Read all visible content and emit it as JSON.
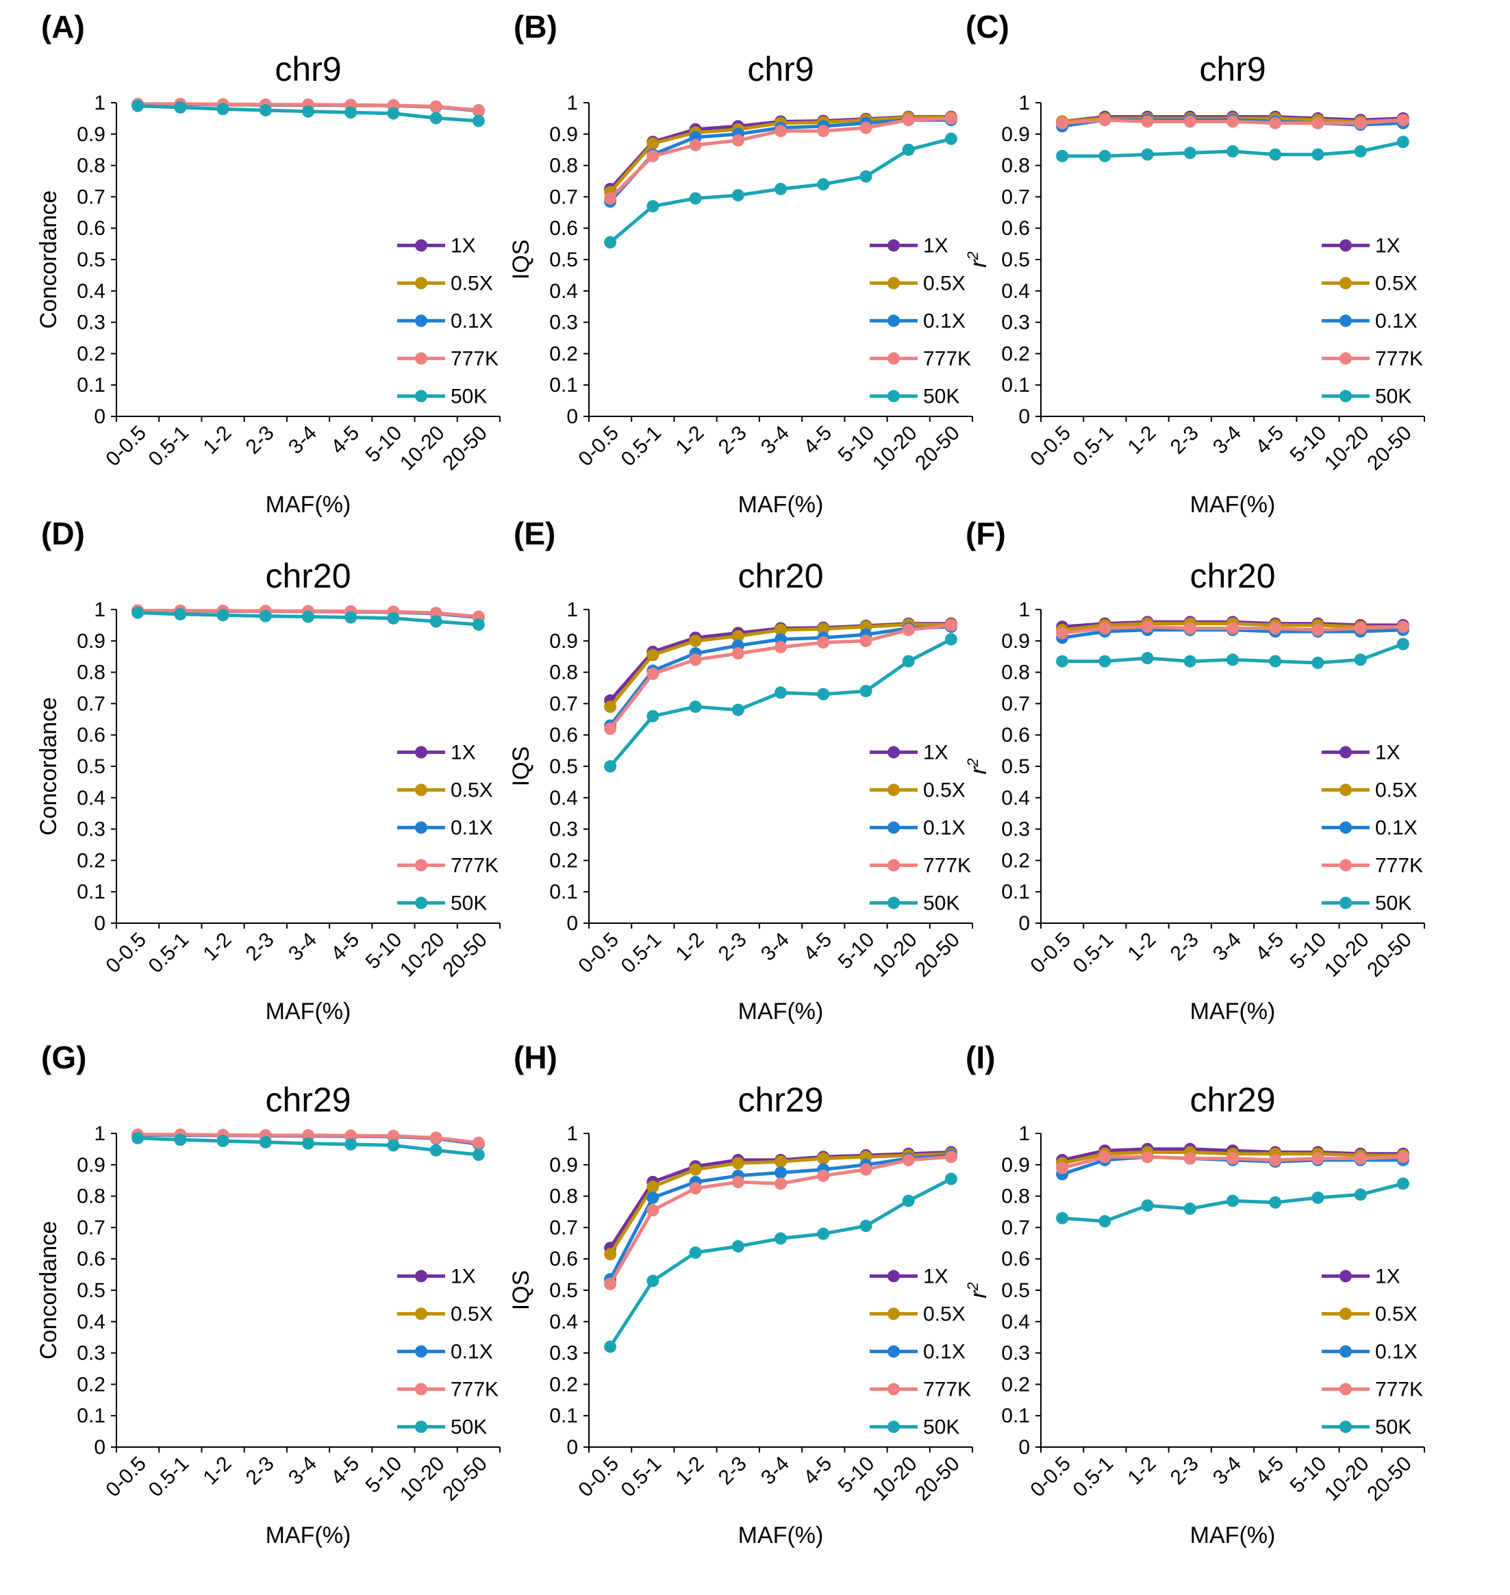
{
  "colors": {
    "1X": "#7030a0",
    "0.5X": "#bf9000",
    "0.1X": "#1f7fd4",
    "777K": "#f08080",
    "50K": "#1aa5b5",
    "axis": "#000000"
  },
  "chart_data": [
    {
      "panel": "(A)",
      "type": "line",
      "title": "chr9",
      "xlabel": "MAF(%)",
      "ylabel": "Concordance",
      "ylabel_style": "normal",
      "ylim": [
        0,
        1
      ],
      "yticks": [
        "0",
        "0.1",
        "0.2",
        "0.3",
        "0.4",
        "0.5",
        "0.6",
        "0.7",
        "0.8",
        "0.9",
        "1"
      ],
      "categories": [
        "0-0.5",
        "0.5-1",
        "1-2",
        "2-3",
        "3-4",
        "4-5",
        "5-10",
        "10-20",
        "20-50"
      ],
      "legend_position": "right-middle",
      "grid": false,
      "series": [
        {
          "name": "1X",
          "values": [
            0.995,
            0.995,
            0.994,
            0.993,
            0.993,
            0.992,
            0.991,
            0.987,
            0.975
          ]
        },
        {
          "name": "0.5X",
          "values": [
            0.995,
            0.995,
            0.994,
            0.993,
            0.993,
            0.992,
            0.991,
            0.987,
            0.975
          ]
        },
        {
          "name": "0.1X",
          "values": [
            0.995,
            0.995,
            0.994,
            0.993,
            0.993,
            0.992,
            0.991,
            0.987,
            0.974
          ]
        },
        {
          "name": "777K",
          "values": [
            0.996,
            0.996,
            0.995,
            0.994,
            0.994,
            0.993,
            0.992,
            0.988,
            0.976
          ]
        },
        {
          "name": "50K",
          "values": [
            0.99,
            0.985,
            0.98,
            0.976,
            0.972,
            0.969,
            0.966,
            0.951,
            0.942
          ]
        }
      ]
    },
    {
      "panel": "(B)",
      "type": "line",
      "title": "chr9",
      "xlabel": "MAF(%)",
      "ylabel": "IQS",
      "ylabel_style": "normal",
      "ylim": [
        0,
        1
      ],
      "yticks": [
        "0",
        "0.1",
        "0.2",
        "0.3",
        "0.4",
        "0.5",
        "0.6",
        "0.7",
        "0.8",
        "0.9",
        "1"
      ],
      "categories": [
        "0-0.5",
        "0.5-1",
        "1-2",
        "2-3",
        "3-4",
        "4-5",
        "5-10",
        "10-20",
        "20-50"
      ],
      "legend_position": "right-middle",
      "grid": false,
      "series": [
        {
          "name": "1X",
          "values": [
            0.725,
            0.875,
            0.915,
            0.925,
            0.94,
            0.942,
            0.948,
            0.955,
            0.955
          ]
        },
        {
          "name": "0.5X",
          "values": [
            0.715,
            0.87,
            0.905,
            0.915,
            0.935,
            0.938,
            0.945,
            0.953,
            0.953
          ]
        },
        {
          "name": "0.1X",
          "values": [
            0.685,
            0.835,
            0.89,
            0.9,
            0.92,
            0.925,
            0.935,
            0.945,
            0.945
          ]
        },
        {
          "name": "777K",
          "values": [
            0.695,
            0.83,
            0.865,
            0.88,
            0.91,
            0.91,
            0.92,
            0.945,
            0.95
          ]
        },
        {
          "name": "50K",
          "values": [
            0.555,
            0.67,
            0.695,
            0.705,
            0.725,
            0.74,
            0.765,
            0.85,
            0.885
          ]
        }
      ]
    },
    {
      "panel": "(C)",
      "type": "line",
      "title": "chr9",
      "xlabel": "MAF(%)",
      "ylabel": "r2",
      "ylabel_style": "italic-superscript",
      "ylim": [
        0,
        1
      ],
      "yticks": [
        "0",
        "0.1",
        "0.2",
        "0.3",
        "0.4",
        "0.5",
        "0.6",
        "0.7",
        "0.8",
        "0.9",
        "1"
      ],
      "categories": [
        "0-0.5",
        "0.5-1",
        "1-2",
        "2-3",
        "3-4",
        "4-5",
        "5-10",
        "10-20",
        "20-50"
      ],
      "legend_position": "right-middle",
      "grid": false,
      "series": [
        {
          "name": "1X",
          "values": [
            0.94,
            0.955,
            0.955,
            0.955,
            0.955,
            0.955,
            0.95,
            0.945,
            0.95
          ]
        },
        {
          "name": "0.5X",
          "values": [
            0.94,
            0.95,
            0.95,
            0.95,
            0.95,
            0.95,
            0.945,
            0.94,
            0.945
          ]
        },
        {
          "name": "0.1X",
          "values": [
            0.925,
            0.945,
            0.945,
            0.945,
            0.945,
            0.94,
            0.935,
            0.93,
            0.935
          ]
        },
        {
          "name": "777K",
          "values": [
            0.935,
            0.945,
            0.94,
            0.94,
            0.94,
            0.935,
            0.935,
            0.935,
            0.945
          ]
        },
        {
          "name": "50K",
          "values": [
            0.83,
            0.83,
            0.835,
            0.84,
            0.845,
            0.835,
            0.835,
            0.845,
            0.875
          ]
        }
      ]
    },
    {
      "panel": "(D)",
      "type": "line",
      "title": "chr20",
      "xlabel": "MAF(%)",
      "ylabel": "Concordance",
      "ylabel_style": "normal",
      "ylim": [
        0,
        1
      ],
      "yticks": [
        "0",
        "0.1",
        "0.2",
        "0.3",
        "0.4",
        "0.5",
        "0.6",
        "0.7",
        "0.8",
        "0.9",
        "1"
      ],
      "categories": [
        "0-0.5",
        "0.5-1",
        "1-2",
        "2-3",
        "3-4",
        "4-5",
        "5-10",
        "10-20",
        "20-50"
      ],
      "legend_position": "right-middle",
      "grid": false,
      "series": [
        {
          "name": "1X",
          "values": [
            0.996,
            0.996,
            0.995,
            0.995,
            0.994,
            0.993,
            0.992,
            0.988,
            0.976
          ]
        },
        {
          "name": "0.5X",
          "values": [
            0.996,
            0.996,
            0.995,
            0.995,
            0.994,
            0.993,
            0.992,
            0.988,
            0.976
          ]
        },
        {
          "name": "0.1X",
          "values": [
            0.996,
            0.995,
            0.995,
            0.994,
            0.994,
            0.993,
            0.992,
            0.987,
            0.975
          ]
        },
        {
          "name": "777K",
          "values": [
            0.997,
            0.996,
            0.996,
            0.995,
            0.995,
            0.994,
            0.993,
            0.989,
            0.977
          ]
        },
        {
          "name": "50K",
          "values": [
            0.99,
            0.985,
            0.982,
            0.979,
            0.977,
            0.975,
            0.972,
            0.962,
            0.952
          ]
        }
      ]
    },
    {
      "panel": "(E)",
      "type": "line",
      "title": "chr20",
      "xlabel": "MAF(%)",
      "ylabel": "IQS",
      "ylabel_style": "normal",
      "ylim": [
        0,
        1
      ],
      "yticks": [
        "0",
        "0.1",
        "0.2",
        "0.3",
        "0.4",
        "0.5",
        "0.6",
        "0.7",
        "0.8",
        "0.9",
        "1"
      ],
      "categories": [
        "0-0.5",
        "0.5-1",
        "1-2",
        "2-3",
        "3-4",
        "4-5",
        "5-10",
        "10-20",
        "20-50"
      ],
      "legend_position": "right-middle",
      "grid": false,
      "series": [
        {
          "name": "1X",
          "values": [
            0.71,
            0.865,
            0.91,
            0.925,
            0.94,
            0.942,
            0.948,
            0.955,
            0.955
          ]
        },
        {
          "name": "0.5X",
          "values": [
            0.69,
            0.855,
            0.9,
            0.915,
            0.935,
            0.938,
            0.945,
            0.952,
            0.952
          ]
        },
        {
          "name": "0.1X",
          "values": [
            0.63,
            0.805,
            0.86,
            0.885,
            0.905,
            0.91,
            0.92,
            0.94,
            0.945
          ]
        },
        {
          "name": "777K",
          "values": [
            0.62,
            0.795,
            0.84,
            0.86,
            0.88,
            0.895,
            0.9,
            0.935,
            0.95
          ]
        },
        {
          "name": "50K",
          "values": [
            0.5,
            0.66,
            0.69,
            0.68,
            0.735,
            0.73,
            0.74,
            0.835,
            0.905
          ]
        }
      ]
    },
    {
      "panel": "(F)",
      "type": "line",
      "title": "chr20",
      "xlabel": "MAF(%)",
      "ylabel": "r2",
      "ylabel_style": "italic-superscript",
      "ylim": [
        0,
        1
      ],
      "yticks": [
        "0",
        "0.1",
        "0.2",
        "0.3",
        "0.4",
        "0.5",
        "0.6",
        "0.7",
        "0.8",
        "0.9",
        "1"
      ],
      "categories": [
        "0-0.5",
        "0.5-1",
        "1-2",
        "2-3",
        "3-4",
        "4-5",
        "5-10",
        "10-20",
        "20-50"
      ],
      "legend_position": "right-middle",
      "grid": false,
      "series": [
        {
          "name": "1X",
          "values": [
            0.945,
            0.955,
            0.96,
            0.96,
            0.96,
            0.955,
            0.955,
            0.95,
            0.95
          ]
        },
        {
          "name": "0.5X",
          "values": [
            0.935,
            0.95,
            0.955,
            0.955,
            0.955,
            0.95,
            0.95,
            0.945,
            0.945
          ]
        },
        {
          "name": "0.1X",
          "values": [
            0.91,
            0.93,
            0.935,
            0.935,
            0.935,
            0.93,
            0.93,
            0.93,
            0.935
          ]
        },
        {
          "name": "777K",
          "values": [
            0.925,
            0.94,
            0.945,
            0.94,
            0.94,
            0.94,
            0.935,
            0.94,
            0.945
          ]
        },
        {
          "name": "50K",
          "values": [
            0.835,
            0.835,
            0.845,
            0.835,
            0.84,
            0.835,
            0.83,
            0.84,
            0.89
          ]
        }
      ]
    },
    {
      "panel": "(G)",
      "type": "line",
      "title": "chr29",
      "xlabel": "MAF(%)",
      "ylabel": "Concordance",
      "ylabel_style": "normal",
      "ylim": [
        0,
        1
      ],
      "yticks": [
        "0",
        "0.1",
        "0.2",
        "0.3",
        "0.4",
        "0.5",
        "0.6",
        "0.7",
        "0.8",
        "0.9",
        "1"
      ],
      "categories": [
        "0-0.5",
        "0.5-1",
        "1-2",
        "2-3",
        "3-4",
        "4-5",
        "5-10",
        "10-20",
        "20-50"
      ],
      "legend_position": "right-middle",
      "grid": false,
      "series": [
        {
          "name": "1X",
          "values": [
            0.995,
            0.995,
            0.994,
            0.993,
            0.993,
            0.992,
            0.991,
            0.985,
            0.968
          ]
        },
        {
          "name": "0.5X",
          "values": [
            0.995,
            0.995,
            0.994,
            0.993,
            0.993,
            0.992,
            0.991,
            0.985,
            0.968
          ]
        },
        {
          "name": "0.1X",
          "values": [
            0.995,
            0.994,
            0.994,
            0.993,
            0.992,
            0.991,
            0.99,
            0.984,
            0.966
          ]
        },
        {
          "name": "777K",
          "values": [
            0.996,
            0.996,
            0.995,
            0.994,
            0.994,
            0.993,
            0.992,
            0.986,
            0.97
          ]
        },
        {
          "name": "50K",
          "values": [
            0.985,
            0.98,
            0.976,
            0.972,
            0.968,
            0.965,
            0.962,
            0.946,
            0.932
          ]
        }
      ]
    },
    {
      "panel": "(H)",
      "type": "line",
      "title": "chr29",
      "xlabel": "MAF(%)",
      "ylabel": "IQS",
      "ylabel_style": "normal",
      "ylim": [
        0,
        1
      ],
      "yticks": [
        "0",
        "0.1",
        "0.2",
        "0.3",
        "0.4",
        "0.5",
        "0.6",
        "0.7",
        "0.8",
        "0.9",
        "1"
      ],
      "categories": [
        "0-0.5",
        "0.5-1",
        "1-2",
        "2-3",
        "3-4",
        "4-5",
        "5-10",
        "10-20",
        "20-50"
      ],
      "legend_position": "right-middle",
      "grid": false,
      "series": [
        {
          "name": "1X",
          "values": [
            0.635,
            0.845,
            0.895,
            0.915,
            0.915,
            0.925,
            0.93,
            0.935,
            0.94
          ]
        },
        {
          "name": "0.5X",
          "values": [
            0.615,
            0.83,
            0.885,
            0.905,
            0.91,
            0.92,
            0.925,
            0.93,
            0.935
          ]
        },
        {
          "name": "0.1X",
          "values": [
            0.535,
            0.795,
            0.845,
            0.865,
            0.875,
            0.885,
            0.9,
            0.92,
            0.93
          ]
        },
        {
          "name": "777K",
          "values": [
            0.52,
            0.755,
            0.825,
            0.845,
            0.84,
            0.865,
            0.885,
            0.915,
            0.925
          ]
        },
        {
          "name": "50K",
          "values": [
            0.32,
            0.53,
            0.62,
            0.64,
            0.665,
            0.68,
            0.705,
            0.785,
            0.855
          ]
        }
      ]
    },
    {
      "panel": "(I)",
      "type": "line",
      "title": "chr29",
      "xlabel": "MAF(%)",
      "ylabel": "r2",
      "ylabel_style": "italic-superscript",
      "ylim": [
        0,
        1
      ],
      "yticks": [
        "0",
        "0.1",
        "0.2",
        "0.3",
        "0.4",
        "0.5",
        "0.6",
        "0.7",
        "0.8",
        "0.9",
        "1"
      ],
      "categories": [
        "0-0.5",
        "0.5-1",
        "1-2",
        "2-3",
        "3-4",
        "4-5",
        "5-10",
        "10-20",
        "20-50"
      ],
      "legend_position": "right-middle",
      "grid": false,
      "series": [
        {
          "name": "1X",
          "values": [
            0.915,
            0.945,
            0.95,
            0.95,
            0.945,
            0.94,
            0.94,
            0.935,
            0.935
          ]
        },
        {
          "name": "0.5X",
          "values": [
            0.905,
            0.935,
            0.94,
            0.94,
            0.935,
            0.935,
            0.935,
            0.93,
            0.93
          ]
        },
        {
          "name": "0.1X",
          "values": [
            0.87,
            0.915,
            0.925,
            0.92,
            0.915,
            0.91,
            0.915,
            0.915,
            0.915
          ]
        },
        {
          "name": "777K",
          "values": [
            0.89,
            0.925,
            0.925,
            0.92,
            0.92,
            0.915,
            0.92,
            0.92,
            0.925
          ]
        },
        {
          "name": "50K",
          "values": [
            0.73,
            0.72,
            0.77,
            0.76,
            0.785,
            0.78,
            0.795,
            0.805,
            0.84
          ]
        }
      ]
    }
  ]
}
